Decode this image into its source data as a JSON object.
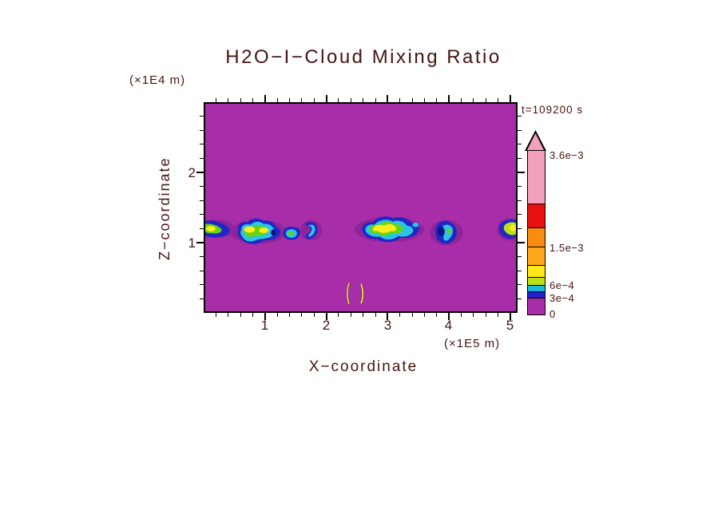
{
  "chart": {
    "title": "H2O−I−Cloud Mixing Ratio",
    "time_label": "t=109200 s",
    "field_background_color": "#A82DA8",
    "x_axis": {
      "label": "X−coordinate",
      "unit": "(×1E5 m)",
      "ticks": [
        "1",
        "2",
        "3",
        "4",
        "5"
      ],
      "range": [
        0,
        5.1
      ],
      "tick_step": 0.2,
      "major_step": 1
    },
    "z_axis": {
      "label": "Z−coordinate",
      "unit": "(×1E4 m)",
      "ticks": [
        "1",
        "2"
      ],
      "range": [
        0,
        3.0
      ],
      "tick_step": 0.2,
      "major_step": 1
    },
    "colorbar": {
      "tick_labels": [
        "3.6e−3",
        "1.5e−3",
        "6e−4",
        "3e−4",
        "0"
      ],
      "arrow_color": "#F2A0BE",
      "segments": [
        {
          "color": "#F2A0BE"
        },
        {
          "color": "#E81212"
        },
        {
          "color": "#FB8C12"
        },
        {
          "color": "#FFA81E"
        },
        {
          "color": "#FFE818"
        },
        {
          "color": "#BCE018"
        },
        {
          "color": "#18B8D8"
        },
        {
          "color": "#2020CC"
        },
        {
          "color": "#A82DA8"
        }
      ]
    }
  },
  "chart_data": {
    "type": "heatmap",
    "title": "H2O−I−Cloud Mixing Ratio",
    "time_annotation": "t=109200 s",
    "xlabel": "X−coordinate (×1E5 m)",
    "ylabel": "Z−coordinate (×1E4 m)",
    "xlim": [
      0,
      5.1
    ],
    "ylim": [
      0,
      3.0
    ],
    "x_major_ticks": [
      1,
      2,
      3,
      4,
      5
    ],
    "z_major_ticks": [
      1,
      2
    ],
    "grid": false,
    "legend_position": "right-colorbar",
    "colorbar_tick_values": [
      "3.6e-3",
      "1.5e-3",
      "6e-4",
      "3e-4",
      "0"
    ],
    "colorbar_colors_top_to_bottom": [
      "#F2A0BE",
      "#E81212",
      "#FB8C12",
      "#FFA81E",
      "#FFE818",
      "#BCE018",
      "#18B8D8",
      "#2020CC",
      "#A82DA8"
    ],
    "background_value": 0,
    "cloud_features": [
      {
        "x_center": 0.2,
        "z_center": 1.2,
        "x_extent": [
          0.0,
          0.45
        ],
        "peak_band": "6e-4 to 1.5e-3"
      },
      {
        "x_center": 0.9,
        "z_center": 1.15,
        "x_extent": [
          0.5,
          1.25
        ],
        "peak_band": "6e-4 to 1.5e-3"
      },
      {
        "x_center": 1.4,
        "z_center": 1.1,
        "x_extent": [
          1.25,
          1.55
        ],
        "peak_band": "3e-4 to 6e-4"
      },
      {
        "x_center": 1.75,
        "z_center": 1.2,
        "x_extent": [
          1.6,
          1.9
        ],
        "peak_band": "3e-4 to 6e-4"
      },
      {
        "x_center": 3.0,
        "z_center": 1.2,
        "x_extent": [
          2.55,
          3.5
        ],
        "peak_band": "6e-4 to 1.5e-3"
      },
      {
        "x_center": 4.0,
        "z_center": 1.1,
        "x_extent": [
          3.8,
          4.2
        ],
        "peak_band": "3e-4 to 6e-4"
      },
      {
        "x_center": 5.0,
        "z_center": 1.25,
        "x_extent": [
          4.85,
          5.1
        ],
        "peak_band": "6e-4 to 1.5e-3"
      },
      {
        "x_center": 2.37,
        "z_center": 0.3,
        "x_extent": [
          2.35,
          2.4
        ],
        "peak_band": "6e-4 to 1.5e-3",
        "note": "thin vertical streak"
      },
      {
        "x_center": 2.56,
        "z_center": 0.3,
        "x_extent": [
          2.54,
          2.59
        ],
        "peak_band": "6e-4 to 1.5e-3",
        "note": "thin vertical streak"
      }
    ]
  }
}
